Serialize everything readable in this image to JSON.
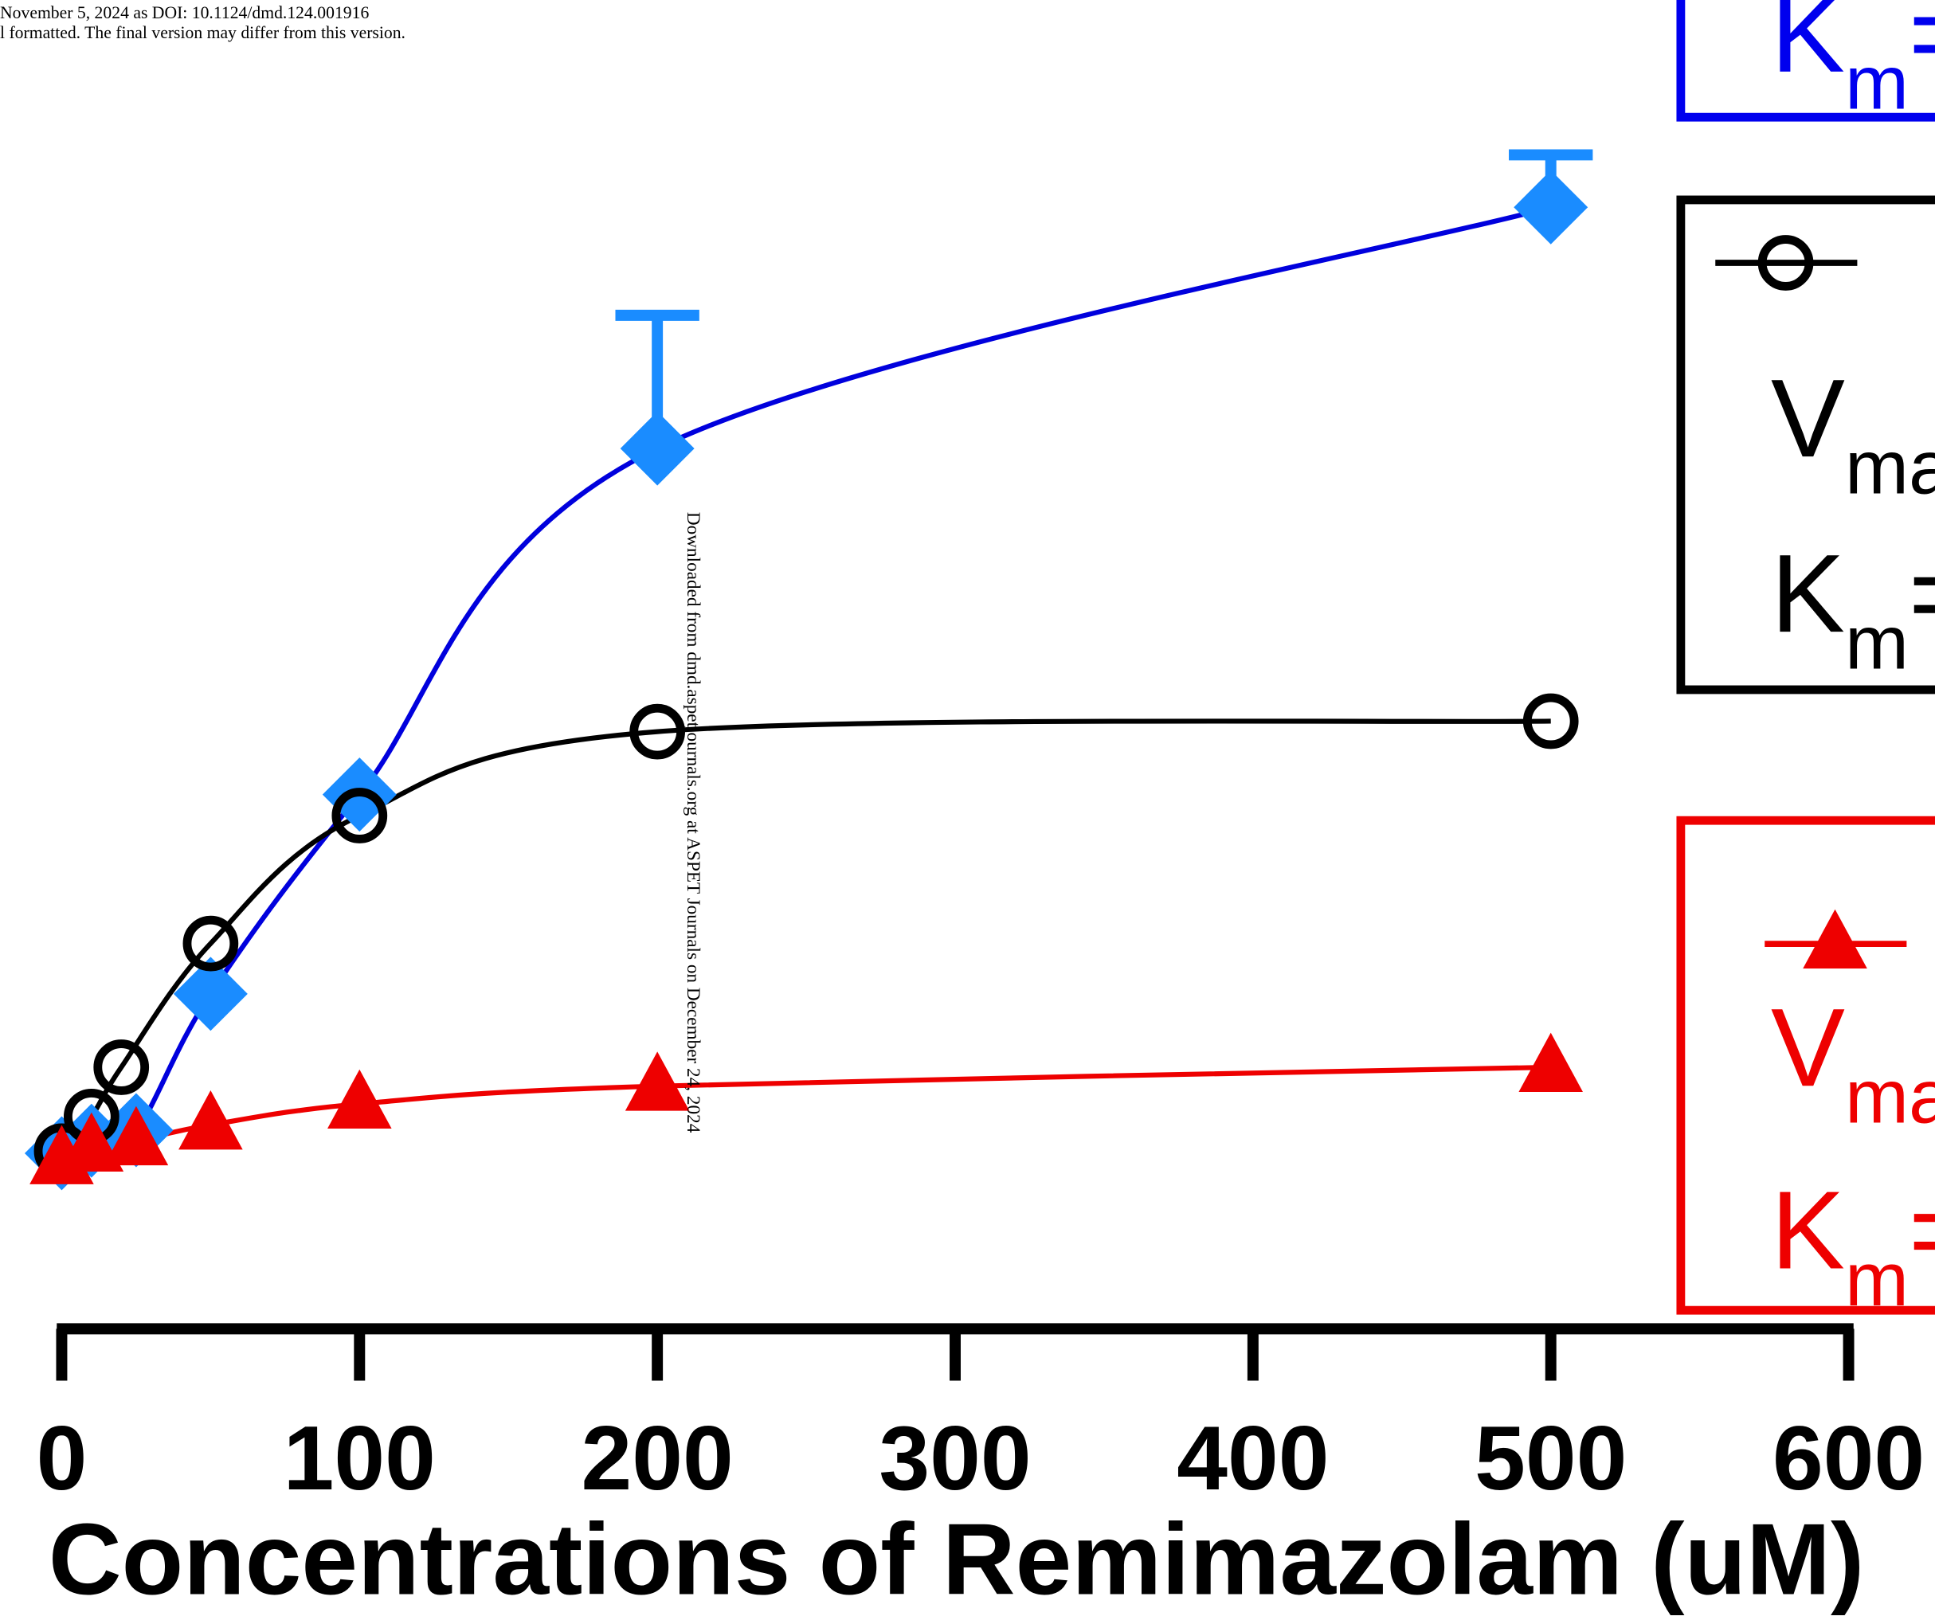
{
  "header": {
    "line1": "November 5, 2024 as DOI: 10.1124/dmd.124.001916",
    "line2": "l formatted. The final version may differ from this version."
  },
  "watermark": "Downloaded from dmd.aspetjournals.org at ASPET Journals on December 24, 2024",
  "chart_data": {
    "type": "scatter",
    "xlabel": "Concentrations of Remimazolam (uM)",
    "xlim": [
      0,
      600
    ],
    "xticks": [
      0,
      100,
      200,
      300,
      400,
      500,
      600
    ],
    "ylim": [
      0,
      100
    ],
    "series": [
      {
        "color": "#1a8cff",
        "line_color": "#0000dd",
        "marker": "diamond",
        "x": [
          0,
          10,
          25,
          50,
          100,
          200,
          500
        ],
        "values": [
          1.8,
          3,
          4,
          17,
          36,
          69,
          92
        ],
        "errors": [
          null,
          null,
          null,
          null,
          null,
          12.7,
          5
        ],
        "legend": {
          "parts": [
            {
              "main": "K",
              "sub": "m",
              "rest": "="
            }
          ]
        }
      },
      {
        "color": "#000000",
        "line_color": "#000000",
        "marker": "circle",
        "x": [
          0,
          10,
          20,
          50,
          100,
          200,
          500
        ],
        "values": [
          2,
          5.3,
          10,
          21.8,
          34,
          42,
          43
        ],
        "legend": {
          "parts": [
            {
              "main": "V",
              "sub": "ma",
              "rest": ""
            },
            {
              "main": "K",
              "sub": "m",
              "rest": "="
            }
          ]
        }
      },
      {
        "color": "#ee0000",
        "line_color": "#ee0000",
        "marker": "triangle",
        "x": [
          0,
          10,
          25,
          50,
          100,
          200,
          500
        ],
        "values": [
          1.2,
          2.4,
          3,
          4.5,
          6.5,
          8.2,
          10
        ],
        "legend": {
          "parts": [
            {
              "main": "V",
              "sub": "ma",
              "rest": ""
            },
            {
              "main": "K",
              "sub": "m",
              "rest": "="
            }
          ]
        }
      }
    ]
  }
}
